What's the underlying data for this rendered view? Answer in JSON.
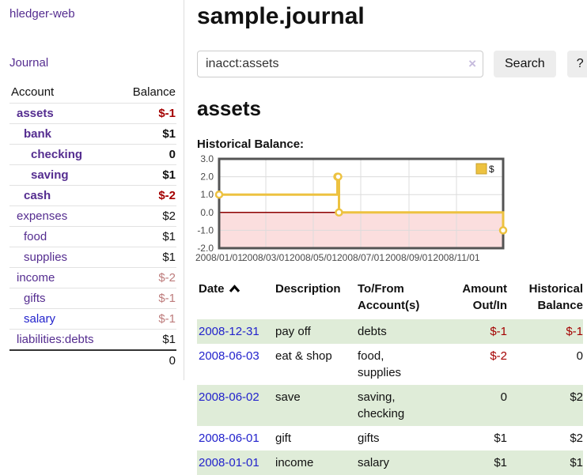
{
  "sidebar": {
    "brand": "hledger-web",
    "nav": {
      "journal_label": "Journal"
    },
    "accounts_table": {
      "headers": {
        "account": "Account",
        "balance": "Balance"
      },
      "rows": [
        {
          "name": "assets",
          "depth": 0,
          "bold": true,
          "link_color": "purple",
          "balance": "$-1",
          "balance_style": "neg-strong"
        },
        {
          "name": "bank",
          "depth": 1,
          "bold": true,
          "link_color": "purple",
          "balance": "$1",
          "balance_style": "normal"
        },
        {
          "name": "checking",
          "depth": 2,
          "bold": true,
          "link_color": "purple",
          "balance": "0",
          "balance_style": "normal"
        },
        {
          "name": "saving",
          "depth": 2,
          "bold": true,
          "link_color": "purple",
          "balance": "$1",
          "balance_style": "normal"
        },
        {
          "name": "cash",
          "depth": 1,
          "bold": true,
          "link_color": "purple",
          "balance": "$-2",
          "balance_style": "neg-strong"
        },
        {
          "name": "expenses",
          "depth": 0,
          "bold": false,
          "link_color": "purple",
          "balance": "$2",
          "balance_style": "normal"
        },
        {
          "name": "food",
          "depth": 1,
          "bold": false,
          "link_color": "purple",
          "balance": "$1",
          "balance_style": "normal"
        },
        {
          "name": "supplies",
          "depth": 1,
          "bold": false,
          "link_color": "purple",
          "balance": "$1",
          "balance_style": "normal"
        },
        {
          "name": "income",
          "depth": 0,
          "bold": false,
          "link_color": "purple",
          "balance": "$-2",
          "balance_style": "neg-soft"
        },
        {
          "name": "gifts",
          "depth": 1,
          "bold": false,
          "link_color": "purple",
          "balance": "$-1",
          "balance_style": "neg-soft"
        },
        {
          "name": "salary",
          "depth": 1,
          "bold": false,
          "link_color": "blue",
          "balance": "$-1",
          "balance_style": "neg-soft"
        },
        {
          "name": "liabilities:debts",
          "depth": 0,
          "bold": false,
          "link_color": "purple",
          "balance": "$1",
          "balance_style": "normal"
        }
      ],
      "total": "0"
    }
  },
  "main": {
    "title": "sample.journal",
    "search": {
      "query": "inacct:assets",
      "clear_icon": "×",
      "search_label": "Search",
      "help_label": "?"
    },
    "account_heading": "assets",
    "chart_heading": "Historical Balance:",
    "register_table": {
      "headers": {
        "date": "Date",
        "description": "Description",
        "accounts": "To/From Account(s)",
        "amount": "Amount Out/In",
        "balance": "Historical Balance"
      },
      "rows": [
        {
          "date": "2008-12-31",
          "description": "pay off",
          "accounts": [
            "debts"
          ],
          "amount": "$-1",
          "amount_negative": true,
          "balance": "$-1",
          "balance_negative": true
        },
        {
          "date": "2008-06-03",
          "description": "eat & shop",
          "accounts": [
            "food, supplies"
          ],
          "amount": "$-2",
          "amount_negative": true,
          "balance": "0",
          "balance_negative": false
        },
        {
          "date": "2008-06-02",
          "description": "save",
          "accounts": [
            "saving,",
            "checking"
          ],
          "amount": "0",
          "amount_negative": false,
          "balance": "$2",
          "balance_negative": false
        },
        {
          "date": "2008-06-01",
          "description": "gift",
          "accounts": [
            "gifts"
          ],
          "amount": "$1",
          "amount_negative": false,
          "balance": "$2",
          "balance_negative": false
        },
        {
          "date": "2008-01-01",
          "description": "income",
          "accounts": [
            "salary"
          ],
          "amount": "$1",
          "amount_negative": false,
          "balance": "$1",
          "balance_negative": false
        }
      ]
    }
  },
  "chart_data": {
    "type": "line",
    "step": true,
    "title": "Historical Balance",
    "xlabel": "",
    "ylabel": "",
    "ylim": [
      -2,
      3
    ],
    "grid": true,
    "legend_position": "top-right",
    "x_range": [
      "2008/01/01",
      "2008/12/31"
    ],
    "x_ticks": [
      "2008/01/01",
      "2008/03/01",
      "2008/05/01",
      "2008/07/01",
      "2008/09/01",
      "2008/11/01"
    ],
    "y_ticks": [
      "3.0",
      "2.0",
      "1.0",
      "0.0",
      "-1.0",
      "-2.0"
    ],
    "series": [
      {
        "name": "$",
        "color": "#edc240",
        "points": [
          [
            "2008/01/01",
            1
          ],
          [
            "2008/06/01",
            2
          ],
          [
            "2008/06/02",
            2
          ],
          [
            "2008/06/03",
            0
          ],
          [
            "2008/12/31",
            -1
          ]
        ]
      }
    ],
    "negative_region_fill": "#fbdede",
    "zero_line_color": "#8b0000"
  },
  "colors": {
    "accent_purple": "#552d90",
    "link_blue": "#2222cc",
    "negative_strong": "#a40000",
    "negative_soft": "#bd7b7b",
    "row_stripe_green": "#dfecd8",
    "chart_gold": "#edc240",
    "chart_negative_pink": "#fbdede",
    "chart_zero_line": "#8b0000",
    "button_gray": "#ededed"
  }
}
